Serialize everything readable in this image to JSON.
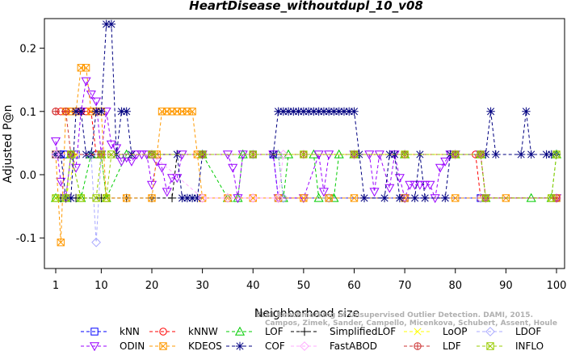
{
  "chart_data": {
    "type": "line",
    "title": "HeartDisease_withoutdupl_10_v08",
    "xlabel": "Neighborhood size",
    "ylabel": "Adjusted P@n",
    "xlim": [
      1,
      100
    ],
    "ylim": [
      -0.15,
      0.25
    ],
    "x_ticks": [
      1,
      10,
      20,
      30,
      40,
      50,
      60,
      70,
      80,
      90,
      100
    ],
    "y_ticks": [
      -0.1,
      0.0,
      0.1,
      0.2
    ],
    "grid": false,
    "legend_position": "bottom",
    "watermark": [
      "ELKI Benchmarking of Unsupervised Outlier Detection. DAMI, 2015.",
      "Campos, Zimek, Sander, Campello, Micenkova, Schubert, Assent, Houle"
    ],
    "series": [
      {
        "name": "kNN",
        "color": "#0000ff",
        "marker": "square",
        "points": [
          [
            1,
            0.032
          ],
          [
            2,
            0.032
          ],
          [
            3,
            0.032
          ],
          [
            5,
            0.032
          ],
          [
            10,
            0.032
          ],
          [
            20,
            0.032
          ],
          [
            30,
            0.032
          ],
          [
            40,
            0.032
          ],
          [
            44,
            0.032
          ],
          [
            45,
            -0.037
          ],
          [
            55,
            -0.037
          ],
          [
            70,
            -0.037
          ],
          [
            85,
            -0.037
          ],
          [
            100,
            -0.037
          ]
        ]
      },
      {
        "name": "kNNW",
        "color": "#ff0000",
        "marker": "circle",
        "points": [
          [
            1,
            0.1
          ],
          [
            2,
            0.1
          ],
          [
            3,
            0.1
          ],
          [
            4,
            0.1
          ],
          [
            5,
            0.1
          ],
          [
            6,
            0.1
          ],
          [
            7,
            0.1
          ],
          [
            8,
            0.1
          ],
          [
            9,
            0.032
          ],
          [
            10,
            0.032
          ],
          [
            20,
            0.032
          ],
          [
            30,
            0.032
          ],
          [
            40,
            0.032
          ],
          [
            50,
            0.032
          ],
          [
            60,
            0.032
          ],
          [
            70,
            0.032
          ],
          [
            80,
            0.032
          ],
          [
            84,
            0.032
          ],
          [
            85,
            -0.037
          ],
          [
            100,
            -0.037
          ]
        ]
      },
      {
        "name": "LOF",
        "color": "#00cc00",
        "marker": "triangle-up",
        "points": [
          [
            1,
            -0.037
          ],
          [
            3,
            -0.037
          ],
          [
            4,
            0.032
          ],
          [
            6,
            -0.037
          ],
          [
            8,
            0.032
          ],
          [
            10,
            0.032
          ],
          [
            11,
            -0.037
          ],
          [
            15,
            0.032
          ],
          [
            20,
            0.032
          ],
          [
            30,
            0.032
          ],
          [
            35,
            -0.037
          ],
          [
            37,
            -0.037
          ],
          [
            38,
            0.032
          ],
          [
            45,
            0.032
          ],
          [
            46,
            -0.037
          ],
          [
            47,
            0.032
          ],
          [
            52,
            0.032
          ],
          [
            53,
            -0.037
          ],
          [
            56,
            -0.037
          ],
          [
            57,
            0.032
          ],
          [
            60,
            0.032
          ],
          [
            70,
            0.032
          ],
          [
            80,
            0.032
          ],
          [
            85,
            0.032
          ],
          [
            86,
            -0.037
          ],
          [
            95,
            -0.037
          ],
          [
            99,
            -0.037
          ],
          [
            100,
            0.032
          ]
        ]
      },
      {
        "name": "SimplifiedLOF",
        "color": "#000000",
        "marker": "plus",
        "points": [
          [
            2,
            -0.037
          ],
          [
            5,
            -0.037
          ],
          [
            10,
            -0.037
          ],
          [
            15,
            -0.037
          ],
          [
            20,
            -0.037
          ],
          [
            24,
            -0.037
          ],
          [
            25,
            0.032
          ],
          [
            30,
            0.032
          ],
          [
            40,
            0.032
          ],
          [
            50,
            0.032
          ],
          [
            60,
            0.032
          ],
          [
            70,
            0.032
          ],
          [
            80,
            0.032
          ],
          [
            85,
            0.032
          ]
        ]
      },
      {
        "name": "LoOP",
        "color": "#ffff00",
        "marker": "x",
        "points": [
          [
            1,
            -0.037
          ],
          [
            3,
            -0.037
          ],
          [
            5,
            0.032
          ],
          [
            10,
            0.032
          ],
          [
            20,
            0.032
          ],
          [
            30,
            0.032
          ],
          [
            40,
            0.032
          ],
          [
            50,
            0.032
          ],
          [
            60,
            0.032
          ],
          [
            70,
            0.032
          ],
          [
            80,
            0.032
          ],
          [
            85,
            0.032
          ]
        ]
      },
      {
        "name": "LDOF",
        "color": "#aaaaff",
        "marker": "diamond",
        "points": [
          [
            1,
            0.032
          ],
          [
            5,
            0.032
          ],
          [
            8,
            0.032
          ],
          [
            9,
            -0.107
          ],
          [
            10,
            0.032
          ],
          [
            20,
            0.032
          ],
          [
            30,
            0.032
          ],
          [
            40,
            0.032
          ],
          [
            45,
            0.032
          ],
          [
            46,
            -0.037
          ],
          [
            55,
            -0.037
          ],
          [
            70,
            -0.037
          ],
          [
            85,
            -0.037
          ],
          [
            100,
            -0.037
          ]
        ]
      },
      {
        "name": "ODIN",
        "color": "#9900ff",
        "marker": "triangle-down",
        "points": [
          [
            1,
            0.053
          ],
          [
            2,
            -0.011
          ],
          [
            3,
            -0.037
          ],
          [
            4,
            0.032
          ],
          [
            5,
            0.011
          ],
          [
            6,
            0.1
          ],
          [
            7,
            0.148
          ],
          [
            8,
            0.127
          ],
          [
            9,
            0.116
          ],
          [
            10,
            0.032
          ],
          [
            11,
            0.1
          ],
          [
            12,
            0.048
          ],
          [
            13,
            0.042
          ],
          [
            14,
            0.021
          ],
          [
            15,
            0.027
          ],
          [
            16,
            0.021
          ],
          [
            17,
            0.032
          ],
          [
            18,
            0.032
          ],
          [
            19,
            0.032
          ],
          [
            20,
            -0.016
          ],
          [
            21,
            0.021
          ],
          [
            22,
            0.011
          ],
          [
            23,
            -0.027
          ],
          [
            24,
            -0.005
          ],
          [
            25,
            -0.005
          ],
          [
            26,
            0.032
          ],
          [
            30,
            0.032
          ],
          [
            35,
            0.032
          ],
          [
            36,
            0.011
          ],
          [
            37,
            -0.037
          ],
          [
            38,
            0.032
          ],
          [
            44,
            0.032
          ],
          [
            45,
            -0.037
          ],
          [
            50,
            -0.037
          ],
          [
            53,
            0.032
          ],
          [
            54,
            -0.027
          ],
          [
            55,
            0.032
          ],
          [
            60,
            0.032
          ],
          [
            63,
            0.032
          ],
          [
            64,
            -0.027
          ],
          [
            65,
            0.032
          ],
          [
            67,
            -0.021
          ],
          [
            68,
            0.032
          ],
          [
            69,
            -0.005
          ],
          [
            70,
            -0.037
          ],
          [
            71,
            -0.016
          ],
          [
            72,
            -0.016
          ],
          [
            73,
            -0.016
          ],
          [
            74,
            -0.016
          ],
          [
            75,
            -0.016
          ],
          [
            76,
            -0.037
          ],
          [
            77,
            0.011
          ],
          [
            78,
            0.021
          ],
          [
            79,
            0.032
          ],
          [
            80,
            0.032
          ],
          [
            85,
            0.032
          ],
          [
            86,
            -0.037
          ],
          [
            100,
            -0.037
          ]
        ]
      },
      {
        "name": "KDEOS",
        "color": "#ff9900",
        "marker": "square-x",
        "points": [
          [
            1,
            0.032
          ],
          [
            2,
            -0.107
          ],
          [
            3,
            0.1
          ],
          [
            4,
            0.1
          ],
          [
            5,
            0.1
          ],
          [
            6,
            0.169
          ],
          [
            7,
            0.169
          ],
          [
            8,
            0.1
          ],
          [
            9,
            0.1
          ],
          [
            10,
            0.1
          ],
          [
            11,
            -0.037
          ],
          [
            15,
            -0.037
          ],
          [
            20,
            -0.037
          ],
          [
            21,
            0.032
          ],
          [
            22,
            0.1
          ],
          [
            23,
            0.1
          ],
          [
            24,
            0.1
          ],
          [
            25,
            0.1
          ],
          [
            26,
            0.1
          ],
          [
            27,
            0.1
          ],
          [
            28,
            0.1
          ],
          [
            29,
            0.032
          ],
          [
            30,
            -0.037
          ],
          [
            35,
            -0.037
          ],
          [
            40,
            -0.037
          ],
          [
            45,
            -0.037
          ],
          [
            50,
            -0.037
          ],
          [
            55,
            -0.037
          ],
          [
            60,
            -0.037
          ],
          [
            70,
            -0.037
          ],
          [
            80,
            -0.037
          ],
          [
            90,
            -0.037
          ],
          [
            100,
            -0.037
          ]
        ]
      },
      {
        "name": "COF",
        "color": "#000080",
        "marker": "asterisk",
        "points": [
          [
            1,
            0.032
          ],
          [
            2,
            0.032
          ],
          [
            3,
            -0.037
          ],
          [
            4,
            -0.037
          ],
          [
            5,
            0.1
          ],
          [
            6,
            0.1
          ],
          [
            7,
            0.032
          ],
          [
            8,
            0.032
          ],
          [
            9,
            0.1
          ],
          [
            10,
            0.1
          ],
          [
            11,
            0.238
          ],
          [
            12,
            0.238
          ],
          [
            13,
            0.032
          ],
          [
            14,
            0.1
          ],
          [
            15,
            0.1
          ],
          [
            16,
            0.032
          ],
          [
            20,
            0.032
          ],
          [
            25,
            0.032
          ],
          [
            26,
            -0.037
          ],
          [
            27,
            -0.037
          ],
          [
            28,
            -0.037
          ],
          [
            29,
            -0.037
          ],
          [
            30,
            0.032
          ],
          [
            44,
            0.032
          ],
          [
            45,
            0.1
          ],
          [
            46,
            0.1
          ],
          [
            47,
            0.1
          ],
          [
            48,
            0.1
          ],
          [
            49,
            0.1
          ],
          [
            50,
            0.1
          ],
          [
            51,
            0.1
          ],
          [
            52,
            0.1
          ],
          [
            53,
            0.1
          ],
          [
            54,
            0.1
          ],
          [
            55,
            0.1
          ],
          [
            56,
            0.1
          ],
          [
            57,
            0.1
          ],
          [
            58,
            0.1
          ],
          [
            59,
            0.1
          ],
          [
            60,
            0.1
          ],
          [
            61,
            0.032
          ],
          [
            62,
            -0.037
          ],
          [
            66,
            -0.037
          ],
          [
            67,
            0.032
          ],
          [
            68,
            0.032
          ],
          [
            69,
            -0.037
          ],
          [
            72,
            -0.037
          ],
          [
            73,
            0.032
          ],
          [
            74,
            -0.037
          ],
          [
            78,
            -0.037
          ],
          [
            79,
            0.032
          ],
          [
            86,
            0.032
          ],
          [
            87,
            0.1
          ],
          [
            88,
            0.032
          ],
          [
            93,
            0.032
          ],
          [
            94,
            0.1
          ],
          [
            95,
            0.032
          ],
          [
            98,
            0.032
          ],
          [
            99,
            0.032
          ],
          [
            100,
            0.032
          ]
        ]
      },
      {
        "name": "FastABOD",
        "color": "#ffaaff",
        "marker": "diamond",
        "points": [
          [
            1,
            0.032
          ],
          [
            10,
            0.032
          ],
          [
            20,
            0.032
          ],
          [
            30,
            -0.037
          ],
          [
            35,
            -0.037
          ],
          [
            40,
            -0.037
          ],
          [
            45,
            -0.037
          ],
          [
            46,
            0.032
          ],
          [
            50,
            0.032
          ],
          [
            60,
            0.032
          ],
          [
            70,
            0.032
          ],
          [
            80,
            0.032
          ],
          [
            85,
            0.032
          ],
          [
            86,
            -0.037
          ],
          [
            100,
            -0.037
          ]
        ]
      },
      {
        "name": "LDF",
        "color": "#cc3333",
        "marker": "circle-plus",
        "points": [
          [
            1,
            0.1
          ],
          [
            3,
            0.1
          ],
          [
            4,
            0.032
          ],
          [
            10,
            0.032
          ],
          [
            20,
            0.032
          ],
          [
            30,
            0.032
          ],
          [
            40,
            0.032
          ],
          [
            50,
            0.032
          ],
          [
            60,
            0.032
          ],
          [
            70,
            0.032
          ],
          [
            80,
            0.032
          ],
          [
            85,
            0.032
          ],
          [
            86,
            -0.037
          ],
          [
            100,
            -0.037
          ]
        ]
      },
      {
        "name": "INFLO",
        "color": "#99cc00",
        "marker": "square-x",
        "points": [
          [
            1,
            -0.037
          ],
          [
            3,
            -0.037
          ],
          [
            4,
            0.032
          ],
          [
            6,
            -0.037
          ],
          [
            9,
            -0.037
          ],
          [
            10,
            0.032
          ],
          [
            11,
            -0.037
          ],
          [
            12,
            0.032
          ],
          [
            20,
            0.032
          ],
          [
            30,
            0.032
          ],
          [
            40,
            0.032
          ],
          [
            50,
            0.032
          ],
          [
            60,
            0.032
          ],
          [
            70,
            0.032
          ],
          [
            80,
            0.032
          ],
          [
            85,
            0.032
          ],
          [
            86,
            -0.037
          ],
          [
            99,
            -0.037
          ],
          [
            100,
            0.032
          ]
        ]
      }
    ]
  }
}
